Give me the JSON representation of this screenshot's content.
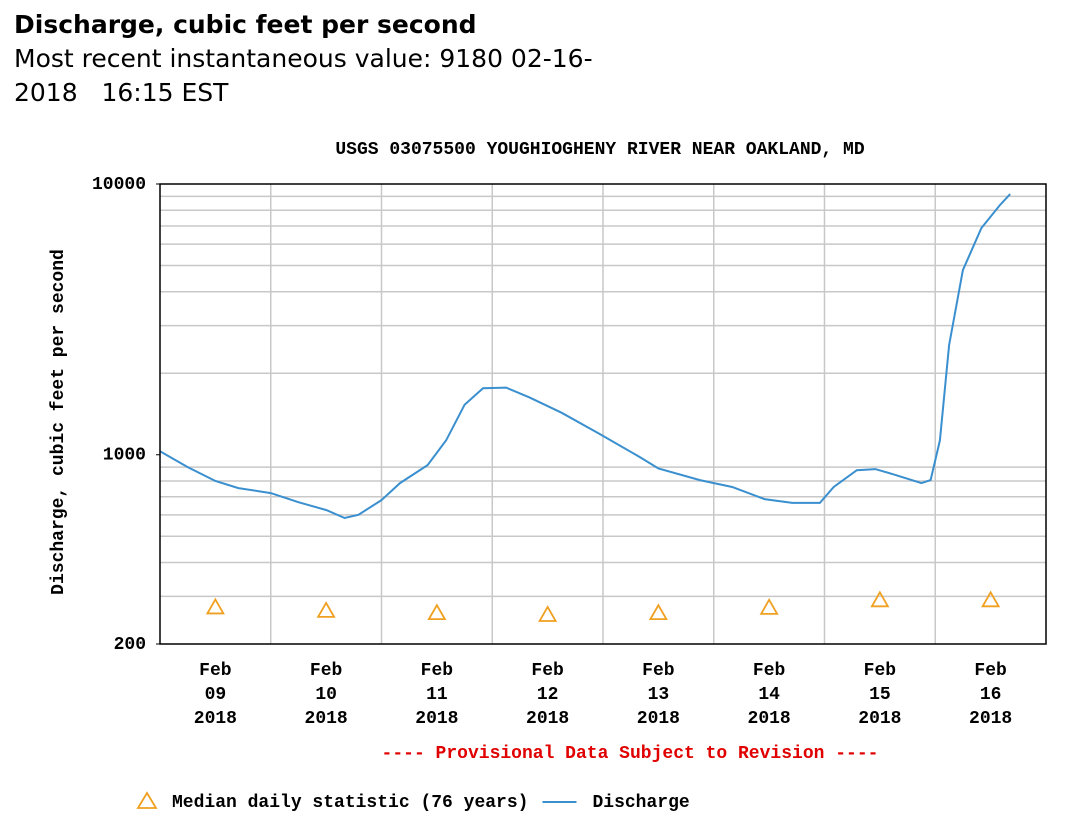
{
  "header": {
    "title": "Discharge, cubic feet per second",
    "subtitle": "Most recent instantaneous value: 9180 02-16-2018   16:15 EST"
  },
  "chart_data": {
    "type": "line",
    "title": "USGS 03075500 YOUGHIOGHENY RIVER NEAR OAKLAND, MD",
    "y_label": "Discharge, cubic feet per second",
    "note": "---- Provisional Data Subject to Revision ----",
    "log_scale": true,
    "grid": true,
    "xlim": [
      "2018-02-09T00:00",
      "2018-02-17T00:00"
    ],
    "xticks": [
      {
        "value": "2018-02-09T12:00",
        "label": "Feb 09 2018"
      },
      {
        "value": "2018-02-10T12:00",
        "label": "Feb 10 2018"
      },
      {
        "value": "2018-02-11T12:00",
        "label": "Feb 11 2018"
      },
      {
        "value": "2018-02-12T12:00",
        "label": "Feb 12 2018"
      },
      {
        "value": "2018-02-13T12:00",
        "label": "Feb 13 2018"
      },
      {
        "value": "2018-02-14T12:00",
        "label": "Feb 14 2018"
      },
      {
        "value": "2018-02-15T12:00",
        "label": "Feb 15 2018"
      },
      {
        "value": "2018-02-16T12:00",
        "label": "Feb 16 2018"
      }
    ],
    "xgrid": [
      "2018-02-10T00:00",
      "2018-02-11T00:00",
      "2018-02-12T00:00",
      "2018-02-13T00:00",
      "2018-02-14T00:00",
      "2018-02-15T00:00",
      "2018-02-16T00:00"
    ],
    "ylim": [
      200,
      10000
    ],
    "yticks": [
      200,
      1000,
      10000
    ],
    "yminor": [
      300,
      400,
      500,
      600,
      700,
      800,
      900,
      2000,
      3000,
      4000,
      5000,
      6000,
      7000,
      8000,
      9000
    ],
    "series": [
      {
        "name": "Median daily statistic (76 years)",
        "color": "#f0a020",
        "marker": "triangle",
        "x": [
          "2018-02-09T12:00",
          "2018-02-10T12:00",
          "2018-02-11T12:00",
          "2018-02-12T12:00",
          "2018-02-13T12:00",
          "2018-02-14T12:00",
          "2018-02-15T12:00",
          "2018-02-16T12:00"
        ],
        "values": [
          273,
          265,
          260,
          256,
          260,
          272,
          290,
          290
        ]
      },
      {
        "name": "Discharge",
        "color": "#3a8fcf",
        "marker": "line",
        "x": [
          "2018-02-09T00:00",
          "2018-02-09T06:00",
          "2018-02-09T12:00",
          "2018-02-09T17:00",
          "2018-02-10T00:00",
          "2018-02-10T06:00",
          "2018-02-10T12:00",
          "2018-02-10T16:00",
          "2018-02-10T19:00",
          "2018-02-11T00:00",
          "2018-02-11T04:00",
          "2018-02-11T10:00",
          "2018-02-11T14:00",
          "2018-02-11T18:00",
          "2018-02-11T22:00",
          "2018-02-12T03:00",
          "2018-02-12T08:00",
          "2018-02-12T15:00",
          "2018-02-12T23:00",
          "2018-02-13T08:00",
          "2018-02-13T12:00",
          "2018-02-13T21:00",
          "2018-02-14T04:00",
          "2018-02-14T11:00",
          "2018-02-14T17:00",
          "2018-02-14T23:00",
          "2018-02-15T02:00",
          "2018-02-15T07:00",
          "2018-02-15T11:00",
          "2018-02-15T15:00",
          "2018-02-15T21:00",
          "2018-02-15T23:00",
          "2018-02-16T01:00",
          "2018-02-16T03:00",
          "2018-02-16T06:00",
          "2018-02-16T10:00",
          "2018-02-16T14:00",
          "2018-02-16T16:15"
        ],
        "values": [
          1030,
          900,
          800,
          753,
          722,
          668,
          625,
          584,
          600,
          680,
          786,
          916,
          1130,
          1530,
          1760,
          1770,
          1630,
          1430,
          1200,
          980,
          890,
          806,
          760,
          686,
          664,
          664,
          760,
          877,
          885,
          846,
          786,
          806,
          1130,
          2540,
          4810,
          6880,
          8360,
          9180
        ]
      }
    ]
  }
}
